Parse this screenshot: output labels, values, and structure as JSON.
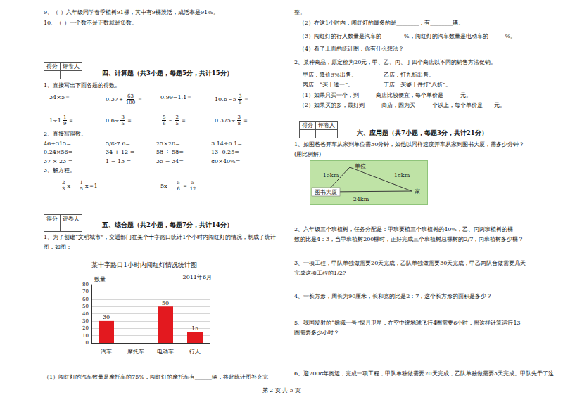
{
  "left_top": [
    "9、（    ）六年级同学春季植树91棵，其中有9棵没活，成活率是91%。",
    "10、（    ）一个数不是正数就是负数。"
  ],
  "score_box": [
    "得分",
    "评卷人"
  ],
  "section4": {
    "title": "四、计算题（共3小题，每题5分，共计15分）",
    "q1": "1、直接写出下面各题的得数。",
    "q1_rows": [
      [
        [
          "34×5＝"
        ],
        [
          "0.37＋",
          {
            "num": "63",
            "den": "100"
          },
          "＝"
        ],
        [
          "0.99÷1.1＝"
        ],
        [
          "10.6－5",
          {
            "num": "3",
            "den": "5"
          },
          "＝"
        ]
      ],
      [
        [
          "1÷1",
          {
            "num": "1",
            "den": "9"
          },
          "＝"
        ],
        [
          "0.6÷",
          {
            "num": "3",
            "den": "5"
          },
          "＝"
        ],
        [
          {
            "num": "5",
            "den": "6"
          },
          "－",
          {
            "num": "2",
            "den": "5"
          },
          "＝"
        ],
        [
          "0.375÷",
          {
            "num": "3",
            "den": "8"
          },
          "＝"
        ]
      ]
    ],
    "q2": "2、直接写得数。",
    "q2_rows": [
      [
        "46+315=",
        "5/8-7.6=",
        "25×28=",
        "3.14÷0.1="
      ],
      [
        "0.24×56=",
        "34 + 12 =",
        "58 ÷ 58=",
        "13 -0.25="
      ],
      [
        "37 × 23 =",
        "1 ÷ 13 =",
        "35 ÷ 34=",
        "80×40%="
      ]
    ],
    "q3": "3、解方程。",
    "q3_eqs": [
      [
        {
          "num": "2",
          "den": "3"
        },
        "x －",
        {
          "num": "1",
          "den": "5"
        },
        "x＝1"
      ],
      [
        "5x －",
        {
          "num": "5",
          "den": "6"
        },
        "＝",
        {
          "num": "5",
          "den": "12"
        }
      ]
    ]
  },
  "section5": {
    "title": "五、综合题（共2小题，每题7分，共计14分）",
    "intro": [
      "1、为了创建“文明城市”，交通部门在某个十字路口统计1个小时内闯红灯的情况，制成了统计",
      "图，如图："
    ],
    "after_chart": "（1）闯红灯的汽车数量是摩托车的75%，闯红灯的摩托车有______辆，将此统计图补充完"
  },
  "right_top": [
    "整。",
    "（2）在这1小时内，闯红灯的最多的是________，有________辆。",
    "（3）闯红灯的行人数量是汽车的________%，闯红灯的汽车数量是电动车的______%。",
    "（4）看了上面的统计图，你有什么想法？",
    "2、某种商品，原定价为20元，甲、乙、丙、丁四个商店以不同的销售方法促销。"
  ],
  "shops": [
    [
      "甲店：降价9%出售。",
      "乙店：打九折出售。"
    ],
    [
      "丙店：“买十送一”。",
      "丁店：买够十件打“八折”。"
    ]
  ],
  "shop_questions": [
    "（1）如果只买一个，到______商店比较便宜，每个单价是______元。",
    "（2）如果买的多，最好到______商店，因为买______个以上，每个单价是____元。"
  ],
  "section6": {
    "title": "六、应用题（共7小题，每题3分，共计21分）",
    "questions": [
      [
        "1、如图爸爸开车从家到单位需30分钟，如他以同样速度开车从家到图书大厦，需多少分钟？",
        "(用比例解)"
      ],
      [
        "2、六年级三个班植树，任务分配是：甲班要植三个班植树的40%，乙、丙两班植树的棵",
        "数的比是4：3，当甲班植树200棵时，正好完成三个班植树总棵树的2/7，丙班植树多少棵？"
      ],
      [
        "3、一项工程，甲队单独做需要20天完成，乙队单独做需要30天完成，甲乙两队合做需要几天",
        "完成这项工程的1/2?"
      ],
      [
        "4、一长方形，周长为90厘米，长和宽的比是2：7，这个长方形的面积是多少？"
      ],
      [
        "5、我国发射的“嫦娥一号”探月卫星，在空中绕地球飞行4圈需要6小时，照这样计算运行13",
        "圈需要多少小时？"
      ],
      [
        "6、迎2008年奥运，完成一项工程，甲队单独做需要20天完成，乙队单独做需要3天完成。甲队先干了这"
      ]
    ]
  },
  "diagram": {
    "nodes": [
      "单位",
      "图书大厦",
      "家"
    ],
    "edges": [
      "15km",
      "18km",
      "24km"
    ]
  },
  "footer": "第 2 页 共 5 页",
  "chart_data": {
    "type": "bar",
    "title": "某十字路口1小时内闯红灯情况统计图",
    "subtitle": "2011年6月",
    "y_label": "数量",
    "categories": [
      "汽车",
      "摩托车",
      "电动车",
      "行人"
    ],
    "values": [
      30,
      null,
      50,
      15
    ],
    "color": "#e3191f",
    "ylim": [
      0,
      80
    ],
    "yticks": [
      0,
      10,
      20,
      30,
      40,
      50,
      60,
      70,
      80
    ],
    "grid": true,
    "data_labels": true
  }
}
